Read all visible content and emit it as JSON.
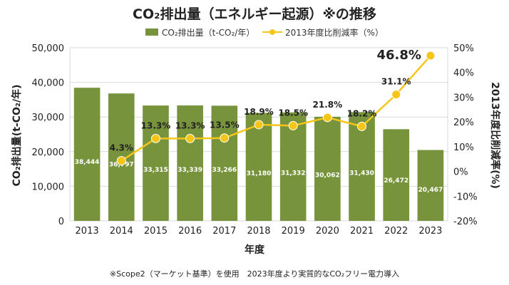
{
  "chart_data": {
    "type": "bar",
    "title": "CO₂排出量（エネルギー起源）※の推移",
    "categories": [
      "2013",
      "2014",
      "2015",
      "2016",
      "2017",
      "2018",
      "2019",
      "2020",
      "2021",
      "2022",
      "2023"
    ],
    "series": [
      {
        "name": "CO₂排出量（t-CO₂/年）",
        "kind": "bar",
        "axis": "left",
        "color": "#77933c",
        "values": [
          38444,
          36797,
          33315,
          33339,
          33266,
          31180,
          31332,
          30062,
          31430,
          26472,
          20467
        ],
        "labels": [
          "38,444",
          "36,797",
          "33,315",
          "33,339",
          "33,266",
          "31,180",
          "31,332",
          "30,062",
          "31,430",
          "26,472",
          "20,467"
        ]
      },
      {
        "name": "2013年度比削減率（%）",
        "kind": "line",
        "axis": "right",
        "color": "#f5c518",
        "values": [
          null,
          4.3,
          13.3,
          13.3,
          13.5,
          18.9,
          18.5,
          21.8,
          18.2,
          31.1,
          46.8
        ],
        "labels": [
          "",
          "4.3%",
          "13.3%",
          "13.3%",
          "13.5%",
          "18.9%",
          "18.5%",
          "21.8%",
          "18.2%",
          "31.1%",
          "46.8%"
        ]
      }
    ],
    "xlabel": "年度",
    "ylabel": "CO₂排出量(t-CO₂/年)",
    "ylabel_right": "2013年度比削減率(%)",
    "ylim": [
      0,
      50000
    ],
    "ylim_right": [
      -20,
      50
    ],
    "yticks": [
      "0",
      "10,000",
      "20,000",
      "30,000",
      "40,000",
      "50,000"
    ],
    "yticks_right": [
      "-20%",
      "-10%",
      "0%",
      "10%",
      "20%",
      "30%",
      "40%",
      "50%"
    ],
    "grid": true,
    "legend_position": "top-center",
    "note": "※Scope2（マーケット基準）を使用　2023年度より実質的なCO₂フリー電力導入"
  }
}
